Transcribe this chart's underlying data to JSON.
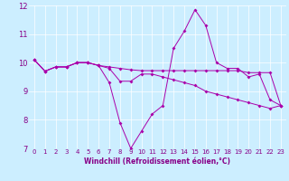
{
  "title": "",
  "xlabel": "Windchill (Refroidissement éolien,°C)",
  "bg_color": "#cceeff",
  "line_color": "#aa00aa",
  "ylim": [
    7,
    12
  ],
  "xlim": [
    -0.5,
    23.5
  ],
  "yticks": [
    7,
    8,
    9,
    10,
    11,
    12
  ],
  "xticks": [
    0,
    1,
    2,
    3,
    4,
    5,
    6,
    7,
    8,
    9,
    10,
    11,
    12,
    13,
    14,
    15,
    16,
    17,
    18,
    19,
    20,
    21,
    22,
    23
  ],
  "series": {
    "line1": {
      "x": [
        0,
        1,
        2,
        3,
        4,
        5,
        6,
        7,
        8,
        9,
        10,
        11,
        12,
        13,
        14,
        15,
        16,
        17,
        18,
        19,
        20,
        21,
        22,
        23
      ],
      "y": [
        10.1,
        9.7,
        9.85,
        9.85,
        10.0,
        10.0,
        9.9,
        9.85,
        9.8,
        9.75,
        9.72,
        9.72,
        9.72,
        9.72,
        9.72,
        9.72,
        9.72,
        9.72,
        9.72,
        9.72,
        9.65,
        9.65,
        9.65,
        8.5
      ]
    },
    "line2": {
      "x": [
        0,
        1,
        2,
        3,
        4,
        5,
        6,
        7,
        8,
        9,
        10,
        11,
        12,
        13,
        14,
        15,
        16,
        17,
        18,
        19,
        20,
        21,
        22,
        23
      ],
      "y": [
        10.1,
        9.7,
        9.85,
        9.85,
        10.0,
        10.0,
        9.9,
        9.3,
        7.9,
        7.0,
        7.6,
        8.2,
        8.5,
        10.5,
        11.1,
        11.85,
        11.3,
        10.0,
        9.8,
        9.8,
        9.5,
        9.6,
        8.7,
        8.5
      ]
    },
    "line3": {
      "x": [
        0,
        1,
        2,
        3,
        4,
        5,
        6,
        7,
        8,
        9,
        10,
        11,
        12,
        13,
        14,
        15,
        16,
        17,
        18,
        19,
        20,
        21,
        22,
        23
      ],
      "y": [
        10.1,
        9.7,
        9.85,
        9.85,
        10.0,
        10.0,
        9.9,
        9.8,
        9.35,
        9.35,
        9.6,
        9.6,
        9.5,
        9.4,
        9.3,
        9.2,
        9.0,
        8.9,
        8.8,
        8.7,
        8.6,
        8.5,
        8.4,
        8.5
      ]
    }
  },
  "xlabel_color": "#880088",
  "tick_color": "#880088",
  "label_fontsize": 5.0,
  "xlabel_fontsize": 5.5
}
